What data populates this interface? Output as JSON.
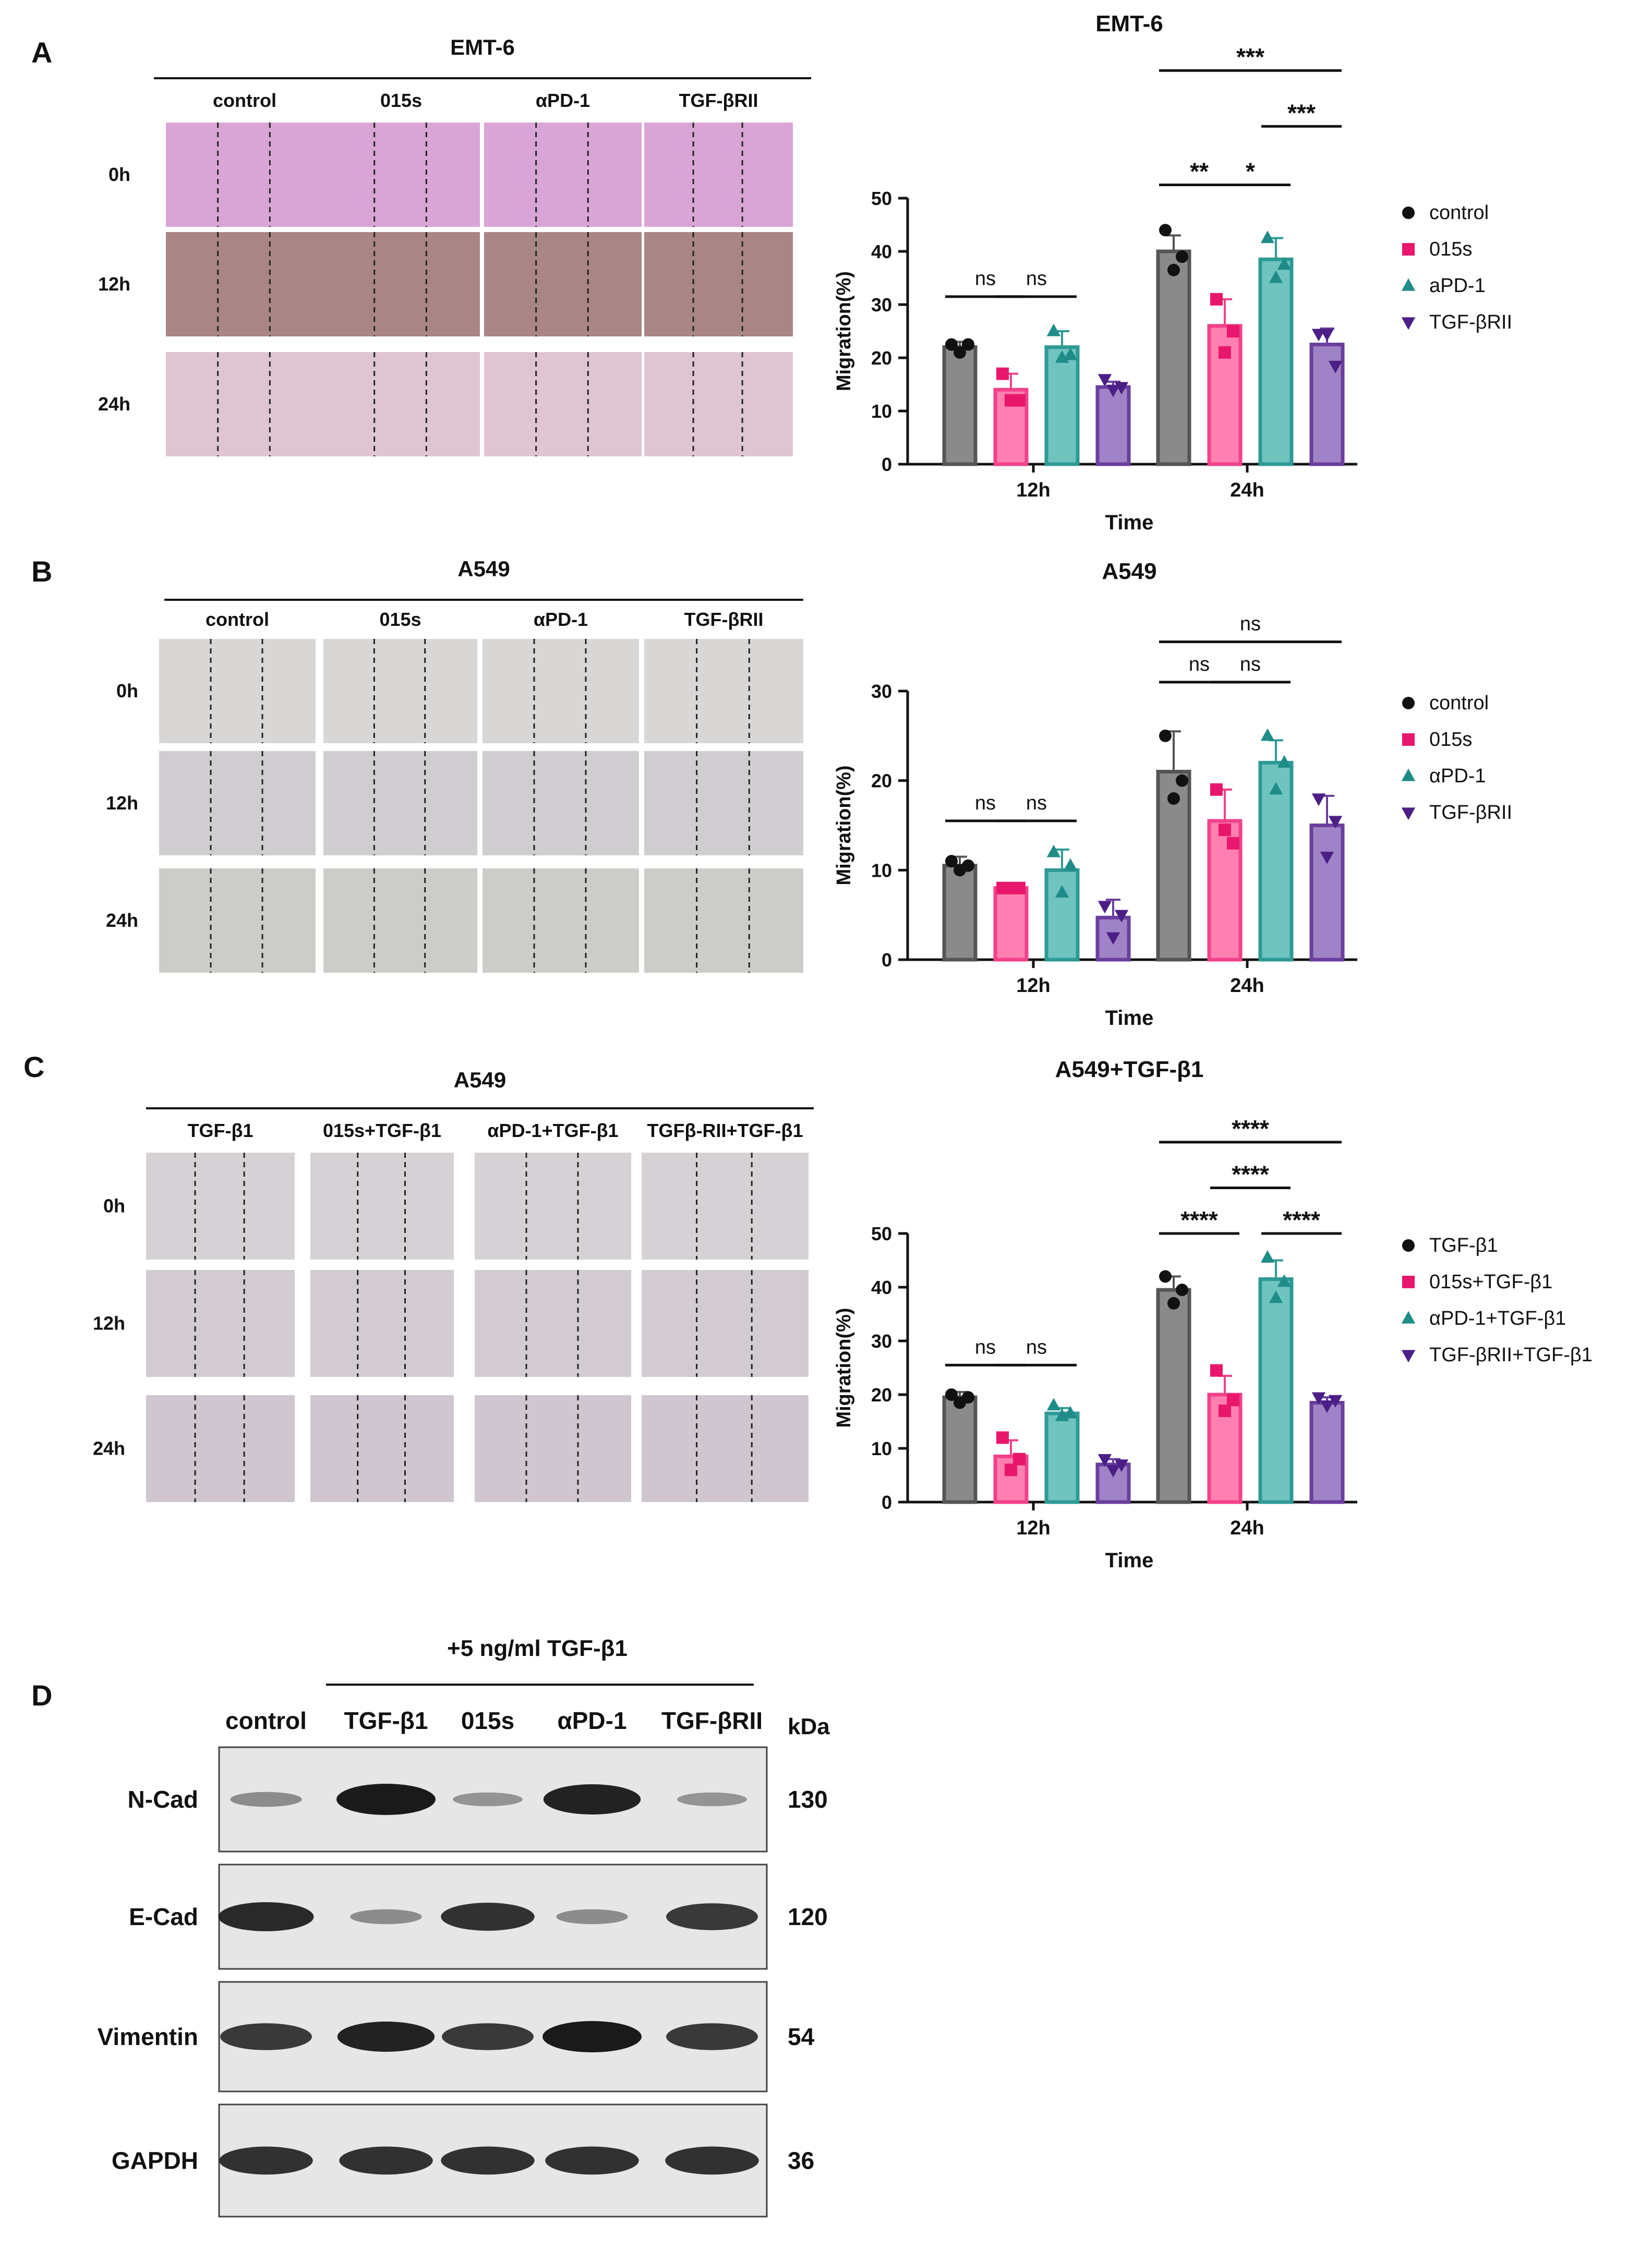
{
  "colors": {
    "control": "#555555",
    "015s": "#f2418a",
    "apd1": "#2e9a96",
    "tgf": "#6a3f9c",
    "marker_control": "#111111",
    "marker_015s": "#e8176b",
    "marker_apd1": "#1f8c88",
    "marker_tgf": "#4b1f86",
    "bar_fill_control": "#8a8a8a",
    "bar_fill_015s": "#ff7fb0",
    "bar_fill_apd1": "#6fc4c0",
    "bar_fill_tgf": "#9f83c6",
    "emt6_0h": "#d9a5d6",
    "emt6_12h": "#a98586",
    "emt6_24h": "#dfc4d2",
    "a549_0h": "#d9d6d6",
    "a549_12h": "#d0cdd0",
    "a549_24h": "#ccccc8",
    "a549tgf_0h": "#d6d1d5",
    "a549tgf_12h": "#d2cbd1",
    "a549tgf_24h": "#cfc6cf",
    "blot_bg": "#e6e6e6",
    "blot_band": "#1a1a1a"
  },
  "panels": [
    {
      "letter": "A",
      "micro_title": "EMT-6",
      "columns": [
        "control",
        "015s",
        "αPD-1",
        "TGF-βRII"
      ],
      "rows": [
        "0h",
        "12h",
        "24h"
      ],
      "palette": [
        "emt6_0h",
        "emt6_12h",
        "emt6_24h"
      ]
    },
    {
      "letter": "B",
      "micro_title": "A549",
      "columns": [
        "control",
        "015s",
        "αPD-1",
        "TGF-βRII"
      ],
      "rows": [
        "0h",
        "12h",
        "24h"
      ],
      "palette": [
        "a549_0h",
        "a549_12h",
        "a549_24h"
      ]
    },
    {
      "letter": "C",
      "micro_title": "A549",
      "columns": [
        "TGF-β1",
        "015s+TGF-β1",
        "αPD-1+TGF-β1",
        "TGFβ-RII+TGF-β1"
      ],
      "rows": [
        "0h",
        "12h",
        "24h"
      ],
      "palette": [
        "a549tgf_0h",
        "a549tgf_12h",
        "a549tgf_24h"
      ]
    }
  ],
  "chart_data": [
    {
      "type": "bar",
      "title": "EMT-6",
      "xlabel": "Time",
      "ylabel": "Migration(%)",
      "ylim": [
        0,
        50
      ],
      "yticks": [
        0,
        10,
        20,
        30,
        40,
        50
      ],
      "categories": [
        "12h",
        "24h"
      ],
      "legend": [
        "control",
        "015s",
        "aPD-1",
        "TGF-βRII"
      ],
      "series": [
        {
          "name": "control",
          "values": [
            22,
            40
          ],
          "err": [
            1,
            3
          ],
          "points": [
            [
              22.5,
              21,
              22.5
            ],
            [
              44,
              36.5,
              39
            ]
          ]
        },
        {
          "name": "015s",
          "values": [
            14,
            26
          ],
          "err": [
            3,
            5
          ],
          "points": [
            [
              17,
              12,
              12
            ],
            [
              31,
              21,
              25
            ]
          ]
        },
        {
          "name": "aPD-1",
          "values": [
            22,
            38.5
          ],
          "err": [
            3,
            4
          ],
          "points": [
            [
              25,
              20,
              20.5
            ],
            [
              42.5,
              35,
              37.5
            ]
          ]
        },
        {
          "name": "TGF-βRII",
          "values": [
            14.5,
            22.5
          ],
          "err": [
            1,
            3
          ],
          "points": [
            [
              16,
              14,
              14.5
            ],
            [
              24.5,
              24.5,
              18.5
            ]
          ]
        }
      ],
      "annotations": [
        {
          "text": "ns",
          "group": 0,
          "from": 0,
          "to": 1,
          "y": 31.5
        },
        {
          "text": "ns",
          "group": 0,
          "from": 1,
          "to": 2,
          "y": 31.5
        },
        {
          "text": "**",
          "group": 1,
          "from": 0,
          "to": 1,
          "y": 52.5
        },
        {
          "text": "*",
          "group": 1,
          "from": 1,
          "to": 2,
          "y": 52.5
        },
        {
          "text": "***",
          "group": 1,
          "from": 2,
          "to": 3,
          "y": 63.5
        },
        {
          "text": "***",
          "group": 1,
          "from": 0,
          "to": 3,
          "y": 74
        }
      ]
    },
    {
      "type": "bar",
      "title": "A549",
      "xlabel": "Time",
      "ylabel": "Migration(%)",
      "ylim": [
        0,
        30
      ],
      "yticks": [
        0,
        10,
        20,
        30
      ],
      "categories": [
        "12h",
        "24h"
      ],
      "legend": [
        "control",
        "015s",
        "αPD-1",
        "TGF-βRII"
      ],
      "series": [
        {
          "name": "control",
          "values": [
            10.5,
            21
          ],
          "err": [
            1,
            4.5
          ],
          "points": [
            [
              11,
              10,
              10.5
            ],
            [
              25,
              18,
              20
            ]
          ]
        },
        {
          "name": "015s",
          "values": [
            8,
            15.5
          ],
          "err": [
            0.3,
            3.5
          ],
          "points": [
            [
              8,
              8,
              8
            ],
            [
              19,
              14.5,
              13
            ]
          ]
        },
        {
          "name": "αPD-1",
          "values": [
            10,
            22
          ],
          "err": [
            2.3,
            2.5
          ],
          "points": [
            [
              12,
              7.5,
              10.5
            ],
            [
              25,
              19,
              22
            ]
          ]
        },
        {
          "name": "TGF-βRII",
          "values": [
            4.7,
            15
          ],
          "err": [
            2,
            3.3
          ],
          "points": [
            [
              6,
              2.5,
              5
            ],
            [
              18,
              11.5,
              15.5
            ]
          ]
        }
      ],
      "annotations": [
        {
          "text": "ns",
          "group": 0,
          "from": 0,
          "to": 1,
          "y": 15.5
        },
        {
          "text": "ns",
          "group": 0,
          "from": 1,
          "to": 2,
          "y": 15.5
        },
        {
          "text": "ns",
          "group": 1,
          "from": 0,
          "to": 1,
          "y": 31
        },
        {
          "text": "ns",
          "group": 1,
          "from": 1,
          "to": 2,
          "y": 31
        },
        {
          "text": "ns",
          "group": 1,
          "from": 0,
          "to": 3,
          "y": 35.5
        }
      ]
    },
    {
      "type": "bar",
      "title": "A549+TGF-β1",
      "xlabel": "Time",
      "ylabel": "Migration(%)",
      "ylim": [
        0,
        50
      ],
      "yticks": [
        0,
        10,
        20,
        30,
        40,
        50
      ],
      "categories": [
        "12h",
        "24h"
      ],
      "legend": [
        "TGF-β1",
        "015s+TGF-β1",
        "αPD-1+TGF-β1",
        "TGF-βRII+TGF-β1"
      ],
      "series": [
        {
          "name": "TGF-β1",
          "values": [
            19.5,
            39.5
          ],
          "err": [
            1,
            2.5
          ],
          "points": [
            [
              20,
              18.5,
              19.5
            ],
            [
              42,
              37,
              39.5
            ]
          ]
        },
        {
          "name": "015s+TGF-β1",
          "values": [
            8.5,
            20
          ],
          "err": [
            3,
            3.5
          ],
          "points": [
            [
              12,
              6,
              8
            ],
            [
              24.5,
              17,
              19
            ]
          ]
        },
        {
          "name": "αPD-1+TGF-β1",
          "values": [
            16.5,
            41.5
          ],
          "err": [
            1,
            3.5
          ],
          "points": [
            [
              18,
              16,
              16.5
            ],
            [
              45.5,
              38,
              41
            ]
          ]
        },
        {
          "name": "TGF-βRII+TGF-β1",
          "values": [
            7,
            18.5
          ],
          "err": [
            1,
            1
          ],
          "points": [
            [
              8,
              6,
              7
            ],
            [
              19.5,
              18,
              19
            ]
          ]
        }
      ],
      "annotations": [
        {
          "text": "ns",
          "group": 0,
          "from": 0,
          "to": 1,
          "y": 25.5
        },
        {
          "text": "ns",
          "group": 0,
          "from": 1,
          "to": 2,
          "y": 25.5
        },
        {
          "text": "****",
          "group": 1,
          "from": 0,
          "to": 1,
          "y": 50
        },
        {
          "text": "****",
          "group": 1,
          "from": 2,
          "to": 3,
          "y": 50
        },
        {
          "text": "****",
          "group": 1,
          "from": 1,
          "to": 2,
          "y": 58.5
        },
        {
          "text": "****",
          "group": 1,
          "from": 0,
          "to": 3,
          "y": 67
        }
      ]
    }
  ],
  "western": {
    "letter": "D",
    "treatment": "+5 ng/ml TGF-β1",
    "lanes": [
      "control",
      "TGF-β1",
      "015s",
      "αPD-1",
      "TGF-βRII"
    ],
    "kda_label": "kDa",
    "blots": [
      {
        "name": "N-Cad",
        "kda": "130",
        "intensity": [
          0.25,
          1.0,
          0.2,
          0.95,
          0.2
        ]
      },
      {
        "name": "E-Cad",
        "kda": "120",
        "intensity": [
          0.9,
          0.25,
          0.85,
          0.25,
          0.8
        ]
      },
      {
        "name": "Vimentin",
        "kda": "54",
        "intensity": [
          0.8,
          0.95,
          0.8,
          1.0,
          0.8
        ]
      },
      {
        "name": "GAPDH",
        "kda": "36",
        "intensity": [
          0.85,
          0.85,
          0.85,
          0.85,
          0.85
        ]
      }
    ]
  }
}
